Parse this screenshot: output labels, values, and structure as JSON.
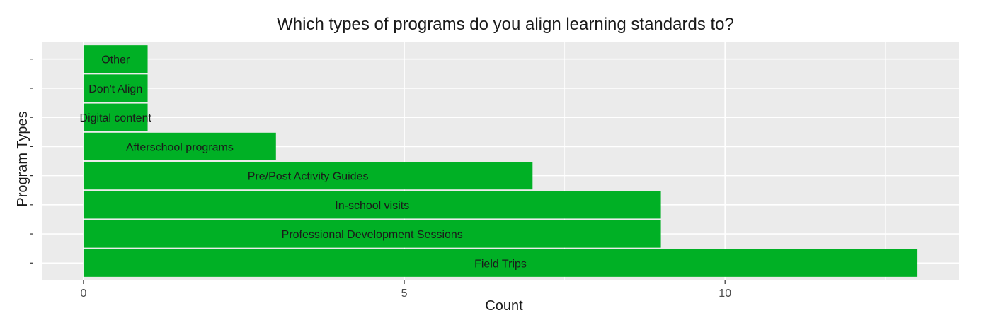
{
  "chart_data": {
    "type": "bar",
    "orientation": "horizontal",
    "title": "Which types of programs do you align learning standards to?",
    "xlabel": "Count",
    "ylabel": "Program Types",
    "categories": [
      "Field Trips",
      "Professional Development Sessions",
      "In-school visits",
      "Pre/Post Activity Guides",
      "Afterschool programs",
      "Digital content",
      "Don't Align",
      "Other"
    ],
    "values": [
      13,
      9,
      9,
      7,
      3,
      1,
      1,
      1
    ],
    "xlim": [
      -0.65,
      13.65
    ],
    "xticks": [
      0,
      5,
      10
    ],
    "xtick_labels": [
      "0",
      "5",
      "10"
    ],
    "grid": true,
    "legend": "none",
    "colors": {
      "bar": "#00B025",
      "panel": "#EBEBEB",
      "grid": "#FFFFFF"
    }
  }
}
